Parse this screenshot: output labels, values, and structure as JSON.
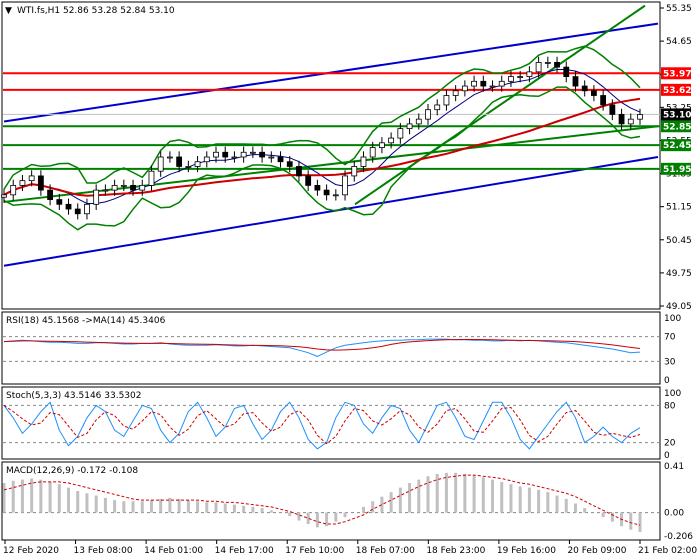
{
  "main_title": "WTI.fs,H1  52.86 53.28 52.84 53.10",
  "rsi_title": "RSI(18) 45.1568   ->MA(14) 45.3406",
  "stoch_title": "Stoch(5,3,3) 43.5146 33.5302",
  "macd_title": "MACD(12,26,9) -0.172 -0.108",
  "colors": {
    "candle": "#000000",
    "bollinger": "#008000",
    "ma_fast": "#000080",
    "ma_slow": "#cc0000",
    "channel": "#0000cc",
    "trend": "#008000",
    "resistance": "#ff0000",
    "support": "#008000",
    "rsi": "#1e90ff",
    "signal": "#cc0000",
    "macd_hist": "#c0c0c0"
  },
  "price_axis": [
    "55.35",
    "54.65",
    "53.95",
    "53.25",
    "52.55",
    "51.85",
    "51.15",
    "50.45",
    "49.75",
    "49.05"
  ],
  "rsi_axis": [
    "100",
    "70",
    "30",
    "0"
  ],
  "stoch_axis": [
    "100",
    "80",
    "20",
    "0"
  ],
  "macd_axis": [
    "0.41",
    "0.00",
    "-0.206"
  ],
  "time_axis": [
    "12 Feb 2020",
    "13 Feb 08:00",
    "14 Feb 01:00",
    "14 Feb 17:00",
    "17 Feb 10:00",
    "18 Feb 07:00",
    "18 Feb 23:00",
    "19 Feb 16:00",
    "20 Feb 09:00",
    "21 Feb 02:00"
  ],
  "levels": [
    {
      "value": "53.97",
      "kind": "resistance"
    },
    {
      "value": "53.62",
      "kind": "resistance"
    },
    {
      "value": "52.85",
      "kind": "support"
    },
    {
      "value": "52.45",
      "kind": "support"
    },
    {
      "value": "51.95",
      "kind": "support"
    }
  ],
  "current_price": "53.10",
  "chart_data": {
    "type": "line",
    "title": "WTI.fs,H1  52.86 53.28 52.84 53.10",
    "symbol": "WTI.fs",
    "timeframe": "H1",
    "ohlc_last": {
      "open": 52.86,
      "high": 53.28,
      "low": 52.84,
      "close": 53.1
    },
    "ylim": [
      49.05,
      55.35
    ],
    "x_ticks": [
      "12 Feb 2020",
      "13 Feb 08:00",
      "14 Feb 01:00",
      "14 Feb 17:00",
      "17 Feb 10:00",
      "18 Feb 07:00",
      "18 Feb 23:00",
      "19 Feb 16:00",
      "20 Feb 09:00",
      "21 Feb 02:00"
    ],
    "series": [
      {
        "values": [
          51.4,
          51.6,
          51.7,
          51.8,
          51.5,
          51.3,
          51.2,
          51.1,
          51.0,
          51.2,
          51.5,
          51.5,
          51.6,
          51.6,
          51.5,
          51.6,
          51.9,
          52.2,
          52.2,
          52.0,
          52.0,
          52.1,
          52.2,
          52.3,
          52.2,
          52.2,
          52.3,
          52.3,
          52.2,
          52.2,
          52.1,
          52.0,
          51.8,
          51.6,
          51.5,
          51.4,
          51.4,
          51.8,
          52.0,
          52.2,
          52.4,
          52.5,
          52.6,
          52.8,
          52.9,
          53.0,
          53.2,
          53.3,
          53.5,
          53.6,
          53.7,
          53.8,
          53.7,
          53.7,
          53.8,
          53.9,
          53.9,
          54.0,
          54.2,
          54.2,
          54.1,
          53.9,
          53.7,
          53.6,
          53.5,
          53.3,
          53.1,
          52.9,
          53.0,
          53.1
        ]
      }
    ],
    "overlays": [
      {
        "name": "53.97",
        "type": "horizontal",
        "y": 53.97
      },
      {
        "name": "53.62",
        "type": "horizontal",
        "y": 53.62
      },
      {
        "name": "52.85",
        "type": "horizontal",
        "y": 52.85
      },
      {
        "name": "52.45",
        "type": "horizontal",
        "y": 52.45
      },
      {
        "name": "51.95",
        "type": "horizontal",
        "y": 51.95
      }
    ],
    "indicators": {
      "rsi": {
        "period": 18,
        "value": 45.1568,
        "ma_period": 14,
        "ma_value": 45.3406,
        "levels": [
          30,
          70
        ],
        "ylim": [
          0,
          100
        ],
        "values": [
          62,
          63,
          64,
          63,
          62,
          61,
          61,
          60,
          59,
          59,
          60,
          60,
          59,
          58,
          58,
          59,
          59,
          60,
          58,
          57,
          56,
          56,
          56,
          57,
          56,
          55,
          55,
          56,
          55,
          54,
          53,
          52,
          48,
          44,
          38,
          45,
          52,
          56,
          58,
          60,
          62,
          63,
          64,
          64,
          65,
          65,
          66,
          66,
          66,
          65,
          65,
          64,
          64,
          63,
          63,
          64,
          63,
          64,
          63,
          62,
          61,
          60,
          58,
          56,
          54,
          52,
          50,
          47,
          44,
          45
        ]
      },
      "stochastic": {
        "k": 5,
        "d": 3,
        "slowing": 3,
        "value": 43.5146,
        "signal": 33.5302,
        "levels": [
          20,
          80
        ],
        "ylim": [
          0,
          100
        ],
        "values": [
          80,
          60,
          35,
          50,
          70,
          85,
          40,
          15,
          30,
          60,
          80,
          70,
          40,
          30,
          55,
          80,
          75,
          40,
          20,
          35,
          70,
          85,
          60,
          30,
          45,
          75,
          80,
          50,
          25,
          40,
          70,
          85,
          60,
          25,
          10,
          20,
          60,
          85,
          80,
          50,
          35,
          60,
          80,
          75,
          40,
          20,
          50,
          80,
          85,
          60,
          30,
          25,
          55,
          85,
          85,
          60,
          25,
          10,
          30,
          50,
          70,
          85,
          60,
          20,
          30,
          45,
          30,
          20,
          35,
          44
        ]
      },
      "macd": {
        "fast": 12,
        "slow": 26,
        "signal": 9,
        "value": -0.172,
        "signal_value": -0.108,
        "ylim": [
          -0.206,
          0.41
        ],
        "values": [
          0.26,
          0.28,
          0.29,
          0.3,
          0.29,
          0.27,
          0.25,
          0.22,
          0.19,
          0.17,
          0.15,
          0.13,
          0.11,
          0.1,
          0.1,
          0.1,
          0.11,
          0.12,
          0.13,
          0.12,
          0.11,
          0.1,
          0.09,
          0.09,
          0.08,
          0.07,
          0.06,
          0.05,
          0.04,
          0.02,
          0.0,
          -0.03,
          -0.07,
          -0.1,
          -0.13,
          -0.12,
          -0.08,
          -0.04,
          0.0,
          0.05,
          0.1,
          0.14,
          0.18,
          0.22,
          0.26,
          0.29,
          0.32,
          0.34,
          0.35,
          0.35,
          0.34,
          0.33,
          0.31,
          0.29,
          0.27,
          0.25,
          0.23,
          0.22,
          0.2,
          0.18,
          0.15,
          0.12,
          0.08,
          0.04,
          0.0,
          -0.04,
          -0.08,
          -0.12,
          -0.15,
          -0.17
        ],
        "signal_values": [
          0.2,
          0.22,
          0.24,
          0.26,
          0.27,
          0.27,
          0.27,
          0.26,
          0.24,
          0.22,
          0.2,
          0.18,
          0.16,
          0.14,
          0.12,
          0.11,
          0.11,
          0.11,
          0.11,
          0.11,
          0.11,
          0.11,
          0.1,
          0.1,
          0.09,
          0.09,
          0.08,
          0.07,
          0.06,
          0.05,
          0.03,
          0.01,
          -0.02,
          -0.05,
          -0.08,
          -0.1,
          -0.1,
          -0.08,
          -0.05,
          -0.02,
          0.03,
          0.07,
          0.11,
          0.15,
          0.19,
          0.23,
          0.26,
          0.29,
          0.31,
          0.32,
          0.33,
          0.33,
          0.32,
          0.31,
          0.3,
          0.28,
          0.26,
          0.25,
          0.23,
          0.21,
          0.19,
          0.17,
          0.14,
          0.1,
          0.06,
          0.02,
          -0.02,
          -0.06,
          -0.09,
          -0.11
        ]
      }
    }
  }
}
